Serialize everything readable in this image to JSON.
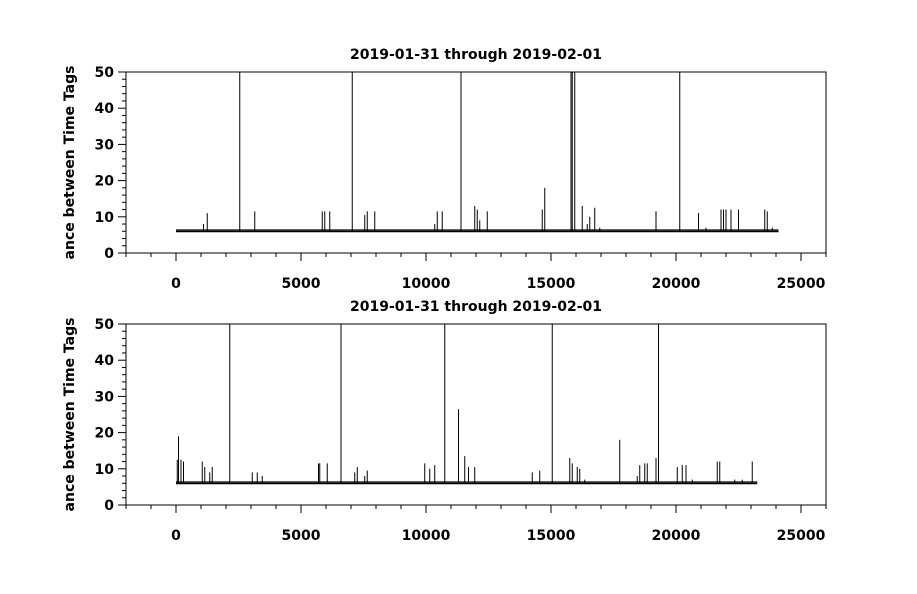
{
  "chart_data": [
    {
      "type": "line",
      "title": "2019-01-31 through 2019-02-01",
      "xlabel": "",
      "ylabel": "ance between Time Tags",
      "xlim": [
        -2000,
        26000
      ],
      "ylim": [
        0,
        50
      ],
      "xticks": [
        0,
        5000,
        10000,
        15000,
        20000,
        25000
      ],
      "yticks": [
        0,
        10,
        20,
        30,
        40,
        50
      ],
      "grid": false,
      "baseline": 6,
      "x_extent": [
        0,
        24100
      ],
      "series": [
        {
          "spikes": [
            [
              1100,
              8
            ],
            [
              1250,
              11
            ],
            [
              2550,
              50
            ],
            [
              3150,
              11.5
            ],
            [
              5850,
              11.5
            ],
            [
              5950,
              11.5
            ],
            [
              6150,
              11.5
            ],
            [
              7050,
              50
            ],
            [
              7550,
              10.5
            ],
            [
              7650,
              11.5
            ],
            [
              7950,
              11.5
            ],
            [
              10350,
              8
            ],
            [
              10450,
              11.5
            ],
            [
              10650,
              11.5
            ],
            [
              11400,
              50
            ],
            [
              11950,
              13
            ],
            [
              12050,
              12
            ],
            [
              12150,
              9
            ],
            [
              12450,
              11.5
            ],
            [
              14650,
              12
            ],
            [
              14750,
              18
            ],
            [
              15800,
              50
            ],
            [
              15850,
              50
            ],
            [
              15950,
              50
            ],
            [
              16250,
              13
            ],
            [
              16450,
              8
            ],
            [
              16550,
              10
            ],
            [
              16750,
              12.5
            ],
            [
              16950,
              7
            ],
            [
              19200,
              11.5
            ],
            [
              20150,
              50
            ],
            [
              20900,
              11
            ],
            [
              21200,
              7
            ],
            [
              21800,
              12
            ],
            [
              21900,
              12
            ],
            [
              22000,
              12
            ],
            [
              22200,
              12
            ],
            [
              22500,
              12
            ],
            [
              23550,
              12
            ],
            [
              23650,
              11.5
            ],
            [
              23850,
              7
            ]
          ]
        }
      ]
    },
    {
      "type": "line",
      "title": "2019-01-31 through 2019-02-01",
      "xlabel": "",
      "ylabel": "ance between Time Tags",
      "xlim": [
        -2000,
        26000
      ],
      "ylim": [
        0,
        50
      ],
      "xticks": [
        0,
        5000,
        10000,
        15000,
        20000,
        25000
      ],
      "yticks": [
        0,
        10,
        20,
        30,
        40,
        50
      ],
      "grid": false,
      "baseline": 6,
      "x_extent": [
        0,
        23250
      ],
      "series": [
        {
          "spikes": [
            [
              50,
              12.5
            ],
            [
              100,
              19
            ],
            [
              200,
              12.5
            ],
            [
              300,
              12
            ],
            [
              1050,
              12
            ],
            [
              1150,
              10.5
            ],
            [
              1350,
              9
            ],
            [
              1450,
              10.5
            ],
            [
              2150,
              50
            ],
            [
              3050,
              9
            ],
            [
              3250,
              9
            ],
            [
              3450,
              8
            ],
            [
              5700,
              11.5
            ],
            [
              5750,
              11.5
            ],
            [
              6050,
              11.5
            ],
            [
              6600,
              50
            ],
            [
              7150,
              9
            ],
            [
              7250,
              10.5
            ],
            [
              7550,
              8
            ],
            [
              7650,
              9.5
            ],
            [
              9950,
              11.5
            ],
            [
              10150,
              10
            ],
            [
              10350,
              11
            ],
            [
              10750,
              50
            ],
            [
              11300,
              26.5
            ],
            [
              11550,
              13.5
            ],
            [
              11700,
              10.5
            ],
            [
              11950,
              10.5
            ],
            [
              14250,
              9
            ],
            [
              14550,
              9.5
            ],
            [
              15050,
              50
            ],
            [
              15750,
              13
            ],
            [
              15850,
              11.5
            ],
            [
              16050,
              10.5
            ],
            [
              16150,
              10
            ],
            [
              16350,
              7
            ],
            [
              17750,
              18
            ],
            [
              18450,
              8
            ],
            [
              18550,
              11
            ],
            [
              18750,
              11.5
            ],
            [
              18850,
              11.5
            ],
            [
              19200,
              13
            ],
            [
              19300,
              50
            ],
            [
              20050,
              10.5
            ],
            [
              20250,
              11
            ],
            [
              20400,
              11
            ],
            [
              20650,
              7
            ],
            [
              21650,
              12
            ],
            [
              21750,
              12
            ],
            [
              22350,
              7
            ],
            [
              22650,
              7
            ],
            [
              23050,
              12
            ]
          ]
        }
      ]
    }
  ]
}
